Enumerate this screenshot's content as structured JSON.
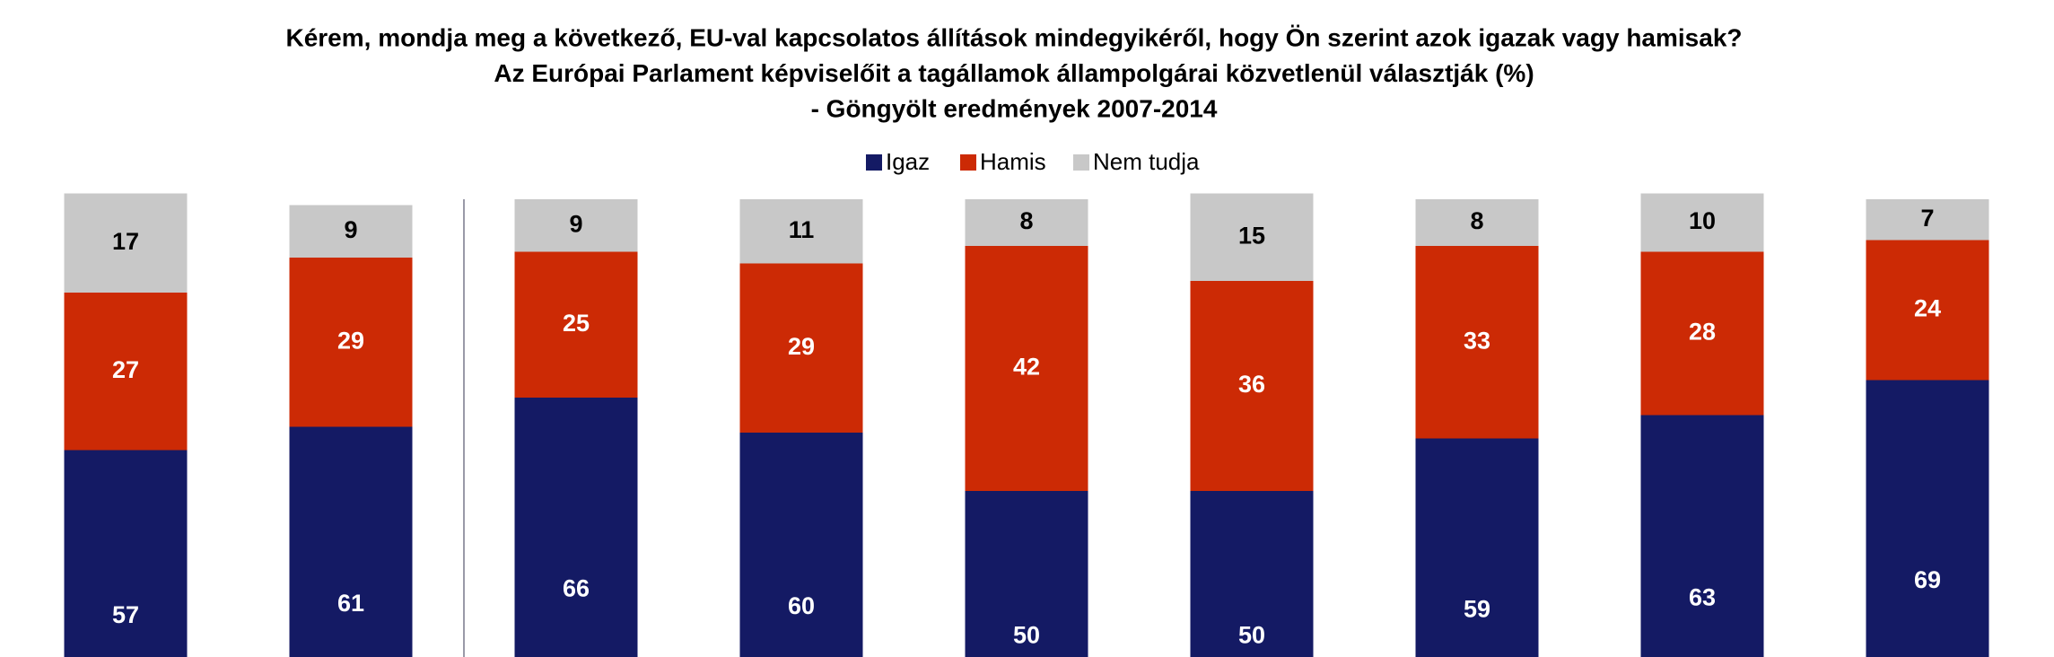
{
  "chart_data": {
    "type": "stacked_bar",
    "title": [
      "Kérem, mondja meg a következő, EU-val kapcsolatos állítások mindegyikéről, hogy Ön szerint azok igazak vagy hamisak?",
      "Az Európai Parlament képviselőit a tagállamok állampolgárai közvetlenül választják (%)",
      "- Göngyölt eredmények 2007-2014"
    ],
    "categories": [
      null,
      null,
      null,
      null,
      null,
      null,
      null,
      null,
      null
    ],
    "series": [
      {
        "name": "Igaz",
        "color": "#141a64",
        "values": [
          57,
          61,
          66,
          60,
          50,
          50,
          59,
          63,
          69
        ]
      },
      {
        "name": "Hamis",
        "color": "#cc2a05",
        "values": [
          27,
          29,
          25,
          29,
          42,
          36,
          33,
          28,
          24
        ]
      },
      {
        "name": "Nem tudja",
        "color": "#c8c8c8",
        "values": [
          17,
          9,
          9,
          11,
          8,
          15,
          8,
          10,
          7
        ]
      }
    ],
    "ylim": [
      0,
      100
    ]
  }
}
